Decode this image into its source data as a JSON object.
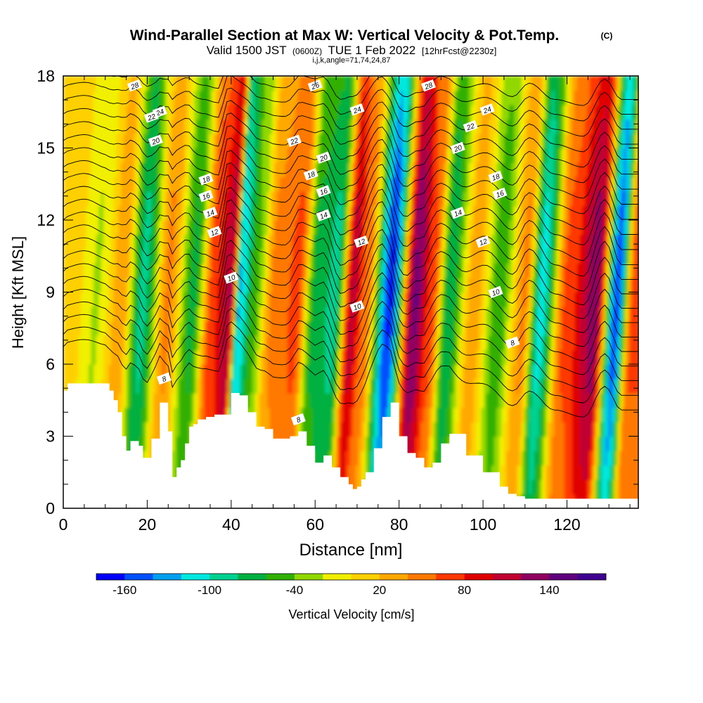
{
  "header": {
    "title": "Wind-Parallel Section at Max W: Vertical Velocity & Pot.Temp.",
    "copyright": "(C)",
    "valid_prefix": "Valid 1500 JST",
    "valid_utc": "(0600Z)",
    "valid_date": "TUE 1 Feb 2022",
    "forecast": "[12hrFcst@2230z]",
    "indices": "i,j,k,angle=71,74,24,87"
  },
  "chart_data": {
    "type": "heatmap",
    "xlabel": "Distance [nm]",
    "ylabel": "Height [Kft MSL]",
    "xlim": [
      0,
      137
    ],
    "ylim": [
      0,
      18
    ],
    "x_ticks": [
      0,
      20,
      40,
      60,
      80,
      100,
      120
    ],
    "y_ticks": [
      0,
      3,
      6,
      9,
      12,
      15,
      18
    ],
    "colorbar": {
      "label": "Vertical Velocity [cm/s]",
      "range": [
        -180,
        180
      ],
      "tick_labels": [
        "-160",
        "-100",
        "-40",
        "20",
        "80",
        "140"
      ],
      "tick_values": [
        -160,
        -100,
        -40,
        20,
        80,
        140
      ],
      "colors": [
        "#0000ff",
        "#0050ff",
        "#00a0f0",
        "#00e8e0",
        "#00d090",
        "#00b040",
        "#30b000",
        "#90d800",
        "#f0f000",
        "#ffd000",
        "#ffa800",
        "#ff7800",
        "#ff3800",
        "#e00000",
        "#c00030",
        "#900060",
        "#600080",
        "#400090"
      ]
    },
    "velocity_bands": [
      {
        "x": 2,
        "w": 12
      },
      {
        "x": 8,
        "w": -20
      },
      {
        "x": 14,
        "w": 30
      },
      {
        "x": 19,
        "w": -80
      },
      {
        "x": 25,
        "w": 40
      },
      {
        "x": 31,
        "w": -60
      },
      {
        "x": 36,
        "w": 70
      },
      {
        "x": 40,
        "w": 110
      },
      {
        "x": 42,
        "w": -110
      },
      {
        "x": 46,
        "w": -40
      },
      {
        "x": 50,
        "w": 40
      },
      {
        "x": 56,
        "w": 60
      },
      {
        "x": 60,
        "w": -60
      },
      {
        "x": 65,
        "w": -80
      },
      {
        "x": 69,
        "w": 100
      },
      {
        "x": 72,
        "w": 50
      },
      {
        "x": 78,
        "w": -150
      },
      {
        "x": 84,
        "w": 130
      },
      {
        "x": 88,
        "w": 60
      },
      {
        "x": 92,
        "w": -70
      },
      {
        "x": 98,
        "w": 30
      },
      {
        "x": 104,
        "w": -50
      },
      {
        "x": 110,
        "w": 40
      },
      {
        "x": 114,
        "w": -100
      },
      {
        "x": 120,
        "w": 60
      },
      {
        "x": 127,
        "w": 120
      },
      {
        "x": 132,
        "w": -140
      },
      {
        "x": 136,
        "w": 60
      }
    ],
    "terrain": {
      "x": [
        0,
        1,
        4,
        8,
        10,
        11,
        12,
        13,
        14,
        15,
        16,
        18,
        19,
        20,
        21,
        23,
        25,
        26,
        27,
        28,
        29,
        30,
        31,
        32,
        34,
        36,
        38,
        40,
        42,
        44,
        46,
        48,
        50,
        52,
        54,
        56,
        58,
        60,
        62,
        64,
        66,
        68,
        69,
        70,
        71,
        72,
        74,
        76,
        78,
        80,
        82,
        84,
        86,
        88,
        90,
        92,
        96,
        100,
        104,
        106,
        108,
        110,
        115,
        120,
        125,
        130,
        134,
        137
      ],
      "kft": [
        4.9,
        5.2,
        5.2,
        5.2,
        5.2,
        4.9,
        4.5,
        4.0,
        3.0,
        2.4,
        2.8,
        2.6,
        2.1,
        2.1,
        2.9,
        4.4,
        3.2,
        1.3,
        1.7,
        2.0,
        2.7,
        3.4,
        3.5,
        3.7,
        3.8,
        3.9,
        3.9,
        4.8,
        4.7,
        4.0,
        3.4,
        3.3,
        2.9,
        2.9,
        3.0,
        3.2,
        2.6,
        1.9,
        2.2,
        1.7,
        1.3,
        1.0,
        0.8,
        0.9,
        1.2,
        1.5,
        2.5,
        3.8,
        4.4,
        3.0,
        2.3,
        2.1,
        1.7,
        1.9,
        2.7,
        3.1,
        2.2,
        1.5,
        0.9,
        0.6,
        0.5,
        0.4,
        0.4,
        0.4,
        0.4,
        0.4,
        0.4,
        0.4
      ]
    },
    "isentropes": {
      "thin_levels_count": 22,
      "labels": [
        {
          "text": "28",
          "x": 17,
          "kft": 17.6
        },
        {
          "text": "24",
          "x": 23,
          "kft": 16.5
        },
        {
          "text": "22",
          "x": 21,
          "kft": 16.3
        },
        {
          "text": "20",
          "x": 22,
          "kft": 15.3
        },
        {
          "text": "18",
          "x": 34,
          "kft": 13.7
        },
        {
          "text": "16",
          "x": 34,
          "kft": 13.0
        },
        {
          "text": "14",
          "x": 35,
          "kft": 12.3
        },
        {
          "text": "12",
          "x": 36,
          "kft": 11.5
        },
        {
          "text": "10",
          "x": 40,
          "kft": 9.6
        },
        {
          "text": "8",
          "x": 24,
          "kft": 5.4
        },
        {
          "text": "26",
          "x": 60,
          "kft": 17.6
        },
        {
          "text": "24",
          "x": 70,
          "kft": 16.6
        },
        {
          "text": "22",
          "x": 55,
          "kft": 15.3
        },
        {
          "text": "20",
          "x": 62,
          "kft": 14.6
        },
        {
          "text": "18",
          "x": 59,
          "kft": 13.9
        },
        {
          "text": "16",
          "x": 62,
          "kft": 13.2
        },
        {
          "text": "14",
          "x": 62,
          "kft": 12.2
        },
        {
          "text": "12",
          "x": 71,
          "kft": 11.1
        },
        {
          "text": "10",
          "x": 70,
          "kft": 8.4
        },
        {
          "text": "8",
          "x": 56,
          "kft": 3.7
        },
        {
          "text": "28",
          "x": 87,
          "kft": 17.6
        },
        {
          "text": "24",
          "x": 101,
          "kft": 16.6
        },
        {
          "text": "22",
          "x": 97,
          "kft": 15.9
        },
        {
          "text": "20",
          "x": 94,
          "kft": 15.0
        },
        {
          "text": "18",
          "x": 103,
          "kft": 13.8
        },
        {
          "text": "16",
          "x": 104,
          "kft": 13.1
        },
        {
          "text": "14",
          "x": 94,
          "kft": 12.3
        },
        {
          "text": "12",
          "x": 100,
          "kft": 11.1
        },
        {
          "text": "10",
          "x": 103,
          "kft": 9.0
        },
        {
          "text": "8",
          "x": 107,
          "kft": 6.9
        }
      ],
      "label_color": "#ffffff"
    }
  }
}
